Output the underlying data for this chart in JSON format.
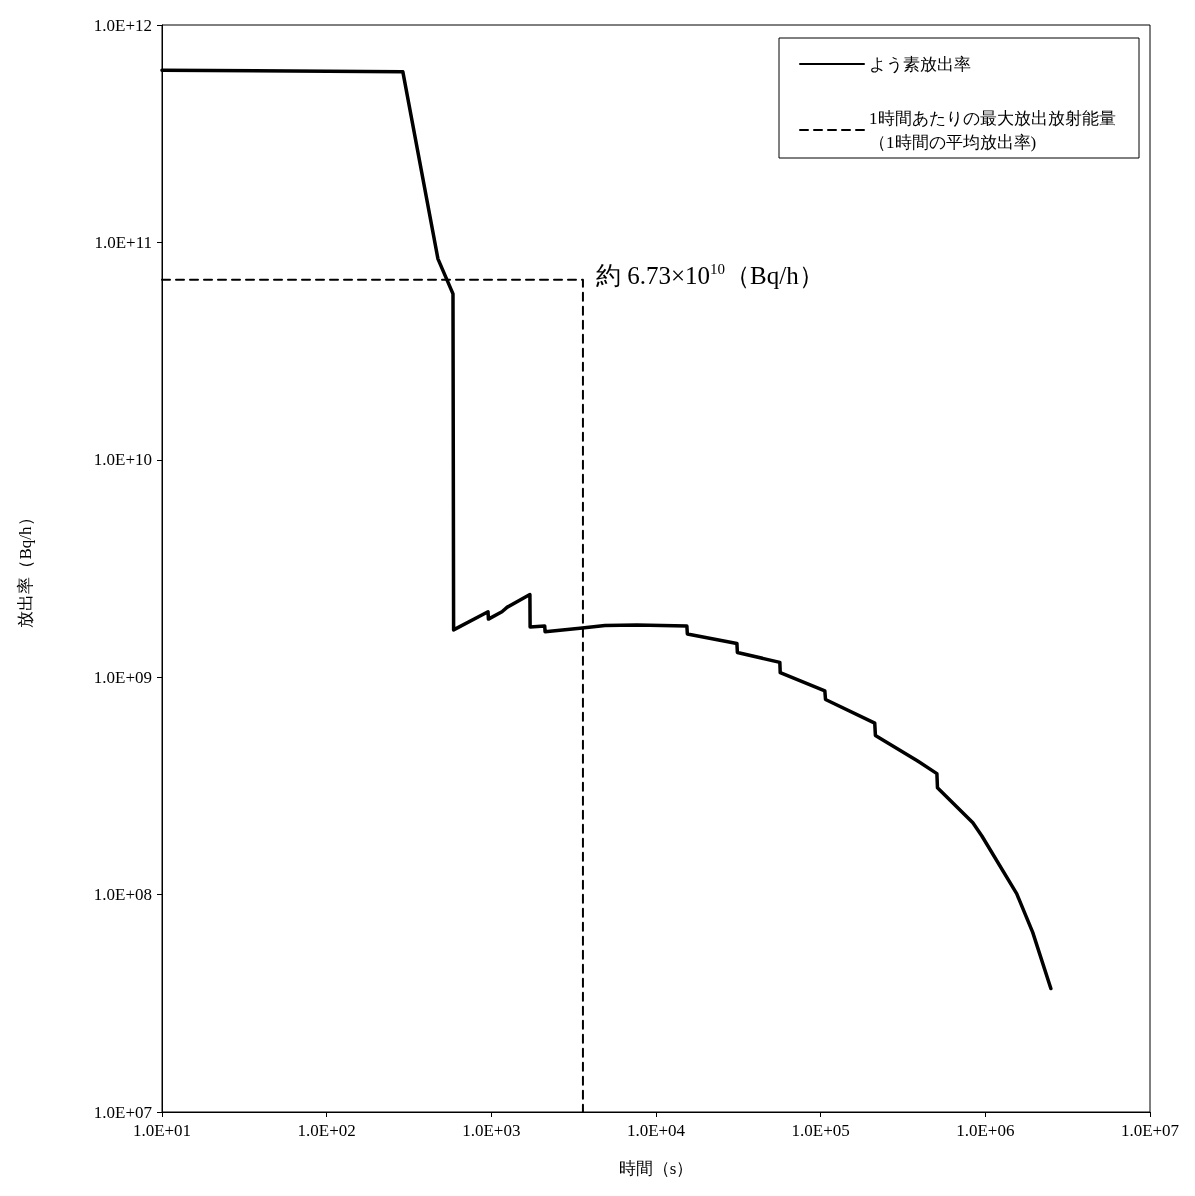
{
  "chart_data": {
    "type": "line",
    "xlabel": "時間（s）",
    "ylabel": "放出率（Bq/h）",
    "log": "xy",
    "xlim": [
      10,
      10000000
    ],
    "ylim": [
      10000000,
      1000000000000
    ],
    "xticks": [
      {
        "value": 10,
        "label": "1.0E+01"
      },
      {
        "value": 100,
        "label": "1.0E+02"
      },
      {
        "value": 1000,
        "label": "1.0E+03"
      },
      {
        "value": 10000,
        "label": "1.0E+04"
      },
      {
        "value": 100000,
        "label": "1.0E+05"
      },
      {
        "value": 1000000,
        "label": "1.0E+06"
      },
      {
        "value": 10000000,
        "label": "1.0E+07"
      }
    ],
    "yticks": [
      {
        "value": 10000000,
        "label": "1.0E+07"
      },
      {
        "value": 100000000,
        "label": "1.0E+08"
      },
      {
        "value": 1000000000,
        "label": "1.0E+09"
      },
      {
        "value": 10000000000,
        "label": "1.0E+10"
      },
      {
        "value": 100000000000,
        "label": "1.0E+11"
      },
      {
        "value": 1000000000000,
        "label": "1.0E+12"
      }
    ],
    "legend": "top right",
    "grid": false,
    "marker": "none",
    "series": [
      {
        "name": "よう素放出率",
        "color": "#000000",
        "line_style": "solid",
        "x": [
          10,
          290,
          474,
          585,
          590,
          955,
          960,
          1160,
          1250,
          1715,
          1720,
          2110,
          2120,
          3450,
          4900,
          7650,
          15400,
          15500,
          31000,
          31200,
          56500,
          56800,
          106000,
          107000,
          213000,
          215000,
          384000,
          508000,
          512000,
          840000,
          953000,
          1550000,
          1940000,
          2500000
        ],
        "values": [
          620000000000.0,
          610000000000.0,
          84000000000.0,
          58000000000.0,
          1650000000.0,
          2000000000.0,
          1850000000.0,
          2000000000.0,
          2100000000.0,
          2400000000.0,
          1700000000.0,
          1720000000.0,
          1620000000.0,
          1680000000.0,
          1730000000.0,
          1740000000.0,
          1720000000.0,
          1580000000.0,
          1430000000.0,
          1300000000.0,
          1170000000.0,
          1050000000.0,
          865000000.0,
          790000000.0,
          615000000.0,
          540000000.0,
          414000000.0,
          360000000.0,
          310000000.0,
          214000000.0,
          186000000.0,
          101000000.0,
          67000000.0,
          37000000.0
        ]
      },
      {
        "name": "1時間あたりの最大放出放射能量（1時間の平均放出率)",
        "color": "#000000",
        "line_style": "dashed",
        "x": [
          10,
          3600,
          3600
        ],
        "values": [
          67300000000.0,
          67300000000.0,
          10000000.0
        ]
      }
    ],
    "annotations": [
      {
        "text": "約 6.73×10$^{10}$（Bq/h）",
        "x": 3600,
        "y": 67300000000.0
      }
    ]
  }
}
